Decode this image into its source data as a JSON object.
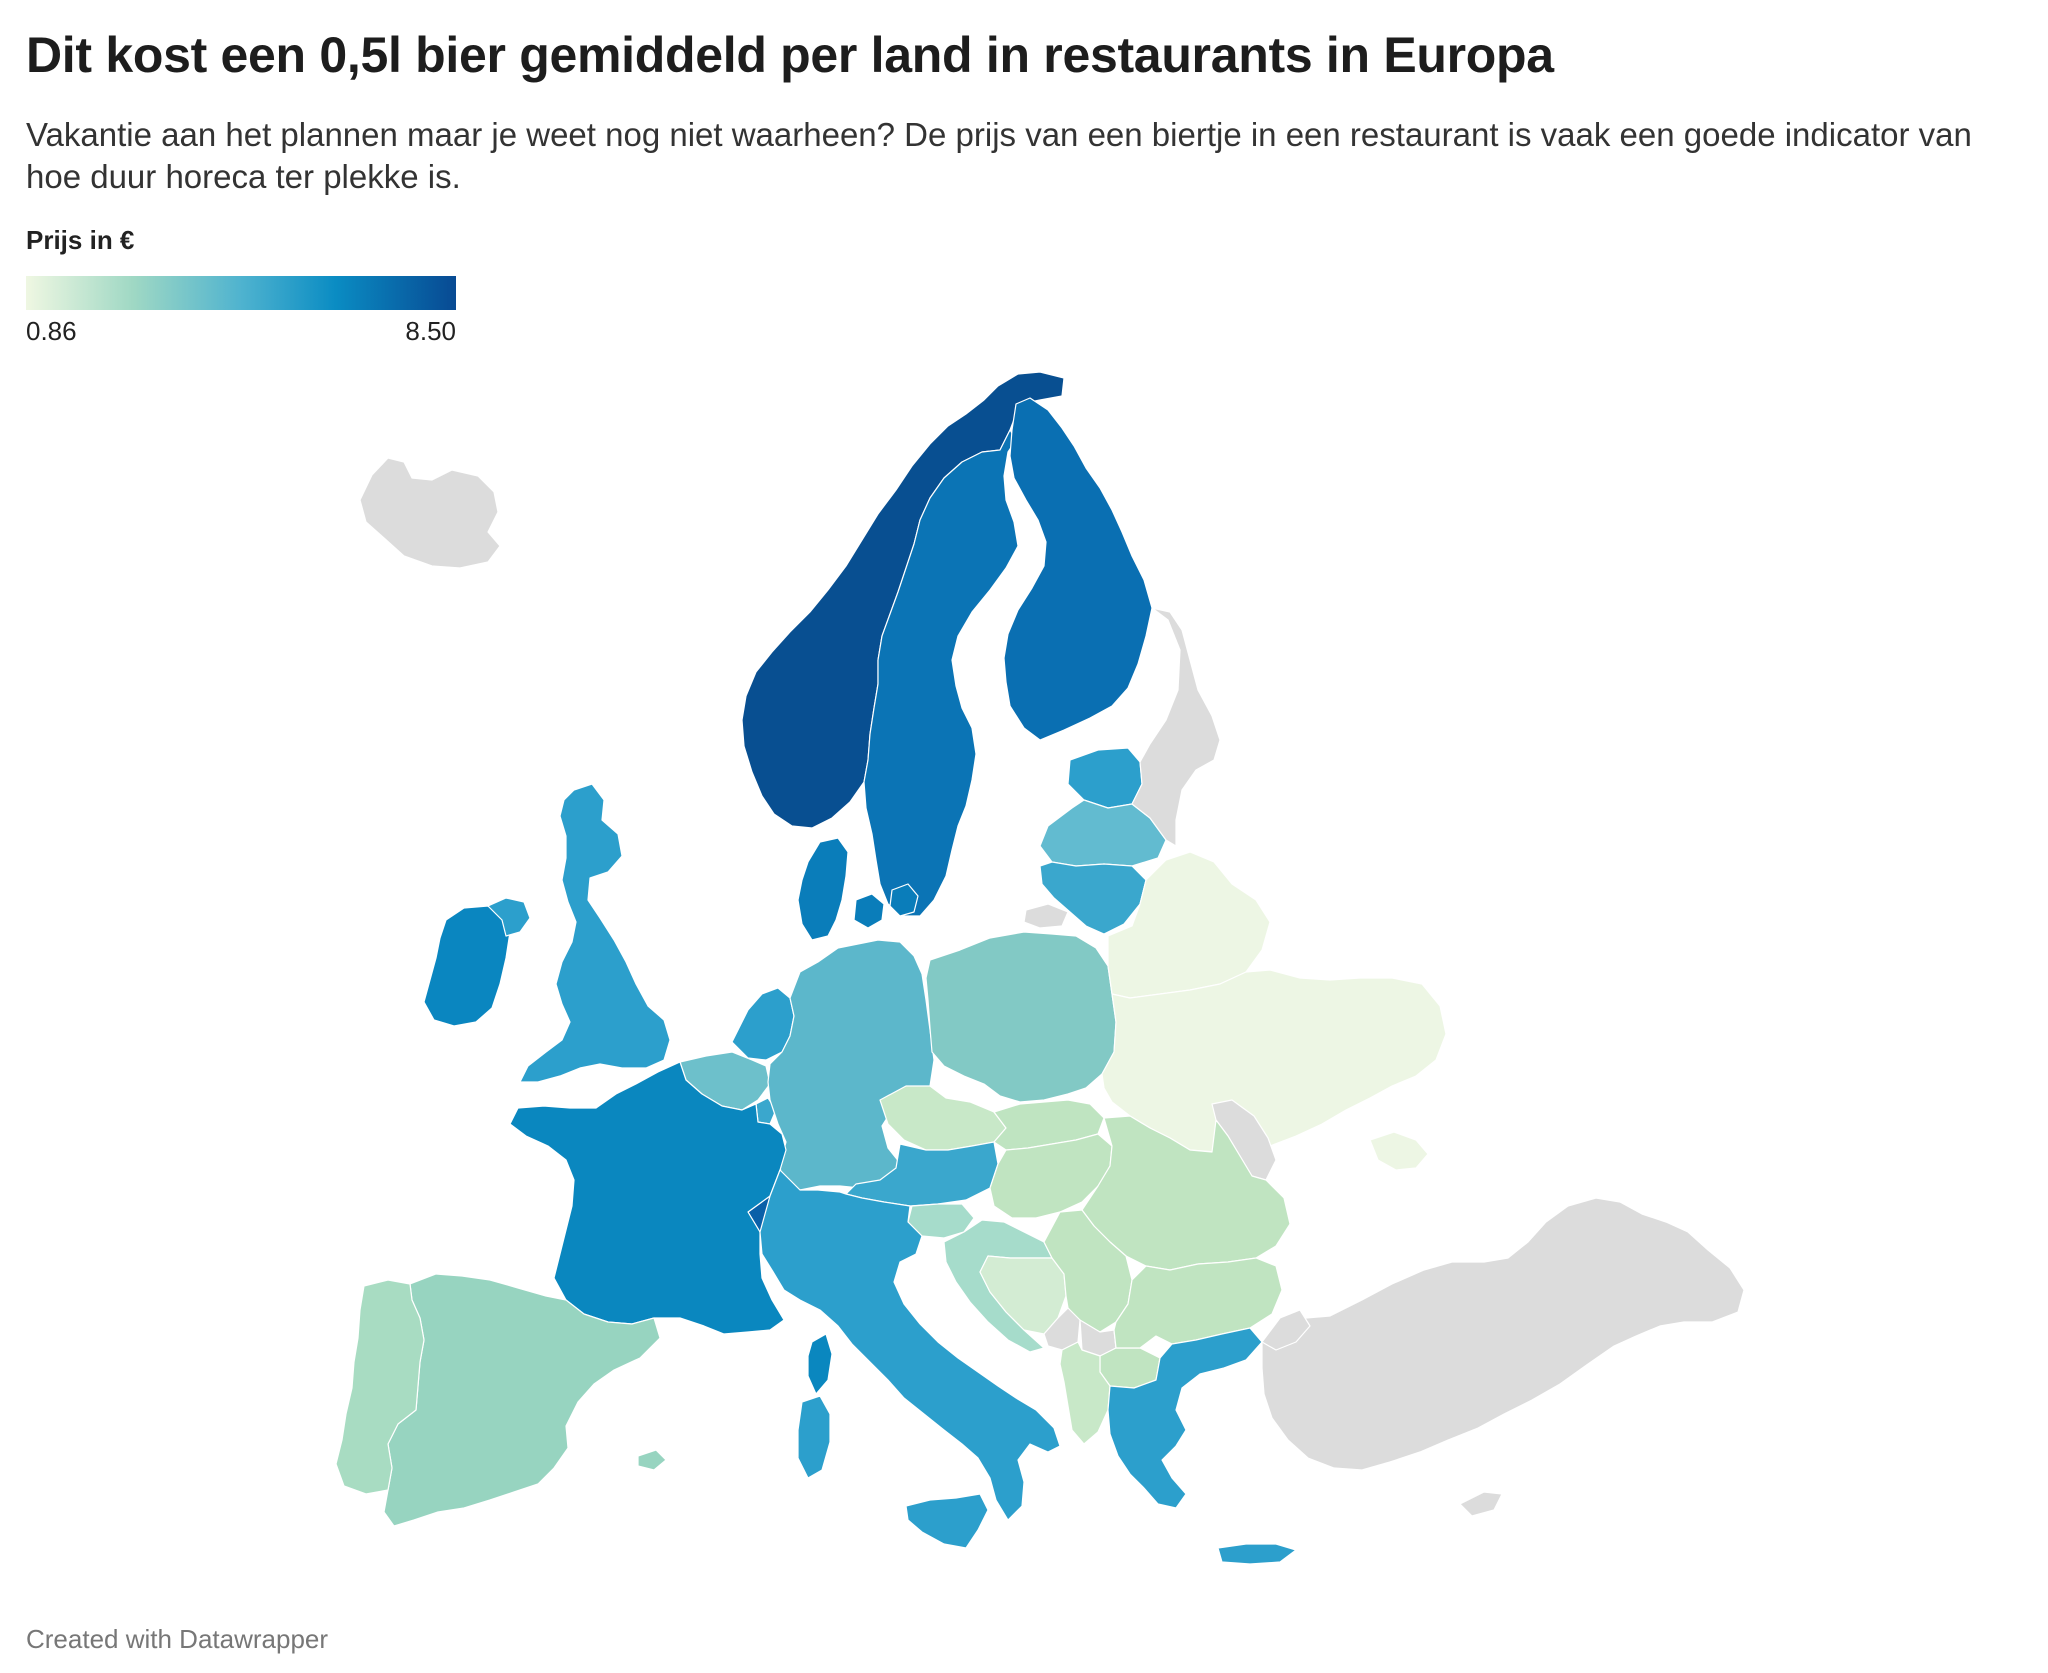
{
  "title": "Dit kost een 0,5l bier gemiddeld per land in restaurants in Europa",
  "subtitle": "Vakantie aan het plannen maar je weet nog niet waarheen? De prijs van een biertje in een restaurant is vaak een goede indicator van hoe duur horeca ter plekke is.",
  "legend": {
    "title": "Prijs in €",
    "min_label": "0.86",
    "max_label": "8.50",
    "colors": [
      "#eff7e2",
      "#9fd8c4",
      "#4fb3cf",
      "#0a8cc3",
      "#084a93"
    ]
  },
  "credit": "Created with Datawrapper",
  "map": {
    "no_data_color": "#dcdcdc",
    "countries": [
      {
        "name": "Iceland",
        "color": "#dcdcdc"
      },
      {
        "name": "Norway",
        "color": "#084f91"
      },
      {
        "name": "Sweden",
        "color": "#0b74b5"
      },
      {
        "name": "Finland",
        "color": "#0a6fb2"
      },
      {
        "name": "Estonia",
        "color": "#2c9fcc"
      },
      {
        "name": "Latvia",
        "color": "#62bbd0"
      },
      {
        "name": "Lithuania",
        "color": "#3aa7cd"
      },
      {
        "name": "Russia",
        "color": "#dcdcdc"
      },
      {
        "name": "Denmark",
        "color": "#0a7dba"
      },
      {
        "name": "Ireland",
        "color": "#0a86c0"
      },
      {
        "name": "Northern Ireland",
        "color": "#2c9fcc"
      },
      {
        "name": "United Kingdom",
        "color": "#2c9fcc"
      },
      {
        "name": "Netherlands",
        "color": "#2c9fcc"
      },
      {
        "name": "Belgium",
        "color": "#6dc0cb"
      },
      {
        "name": "Luxembourg",
        "color": "#3aa7cd"
      },
      {
        "name": "Germany",
        "color": "#5cb7cb"
      },
      {
        "name": "Poland",
        "color": "#82c9c5"
      },
      {
        "name": "Belarus",
        "color": "#edf6e4"
      },
      {
        "name": "Ukraine",
        "color": "#edf6e4"
      },
      {
        "name": "Moldova",
        "color": "#dcdcdc"
      },
      {
        "name": "Czechia",
        "color": "#c8e8c8"
      },
      {
        "name": "Slovakia",
        "color": "#bfe4c1"
      },
      {
        "name": "Austria",
        "color": "#3aa7cd"
      },
      {
        "name": "Switzerland",
        "color": "#0a60a8"
      },
      {
        "name": "Hungary",
        "color": "#c0e4c1"
      },
      {
        "name": "Romania",
        "color": "#c0e4c1"
      },
      {
        "name": "Slovenia",
        "color": "#a6dccb"
      },
      {
        "name": "Croatia",
        "color": "#a6dccb"
      },
      {
        "name": "Bosnia and Herzegovina",
        "color": "#d3ecd3"
      },
      {
        "name": "Serbia",
        "color": "#c0e4c1"
      },
      {
        "name": "Montenegro",
        "color": "#dcdcdc"
      },
      {
        "name": "Kosovo",
        "color": "#dcdcdc"
      },
      {
        "name": "North Macedonia",
        "color": "#c0e4c1"
      },
      {
        "name": "Albania",
        "color": "#c8e8c8"
      },
      {
        "name": "Bulgaria",
        "color": "#c0e4c1"
      },
      {
        "name": "Greece",
        "color": "#2c9fcc"
      },
      {
        "name": "Turkey",
        "color": "#dcdcdc"
      },
      {
        "name": "Cyprus",
        "color": "#dcdcdc"
      },
      {
        "name": "France",
        "color": "#0a87bf"
      },
      {
        "name": "Italy",
        "color": "#2c9fcc"
      },
      {
        "name": "Spain",
        "color": "#97d4c0"
      },
      {
        "name": "Portugal",
        "color": "#a8dcc2"
      }
    ]
  }
}
